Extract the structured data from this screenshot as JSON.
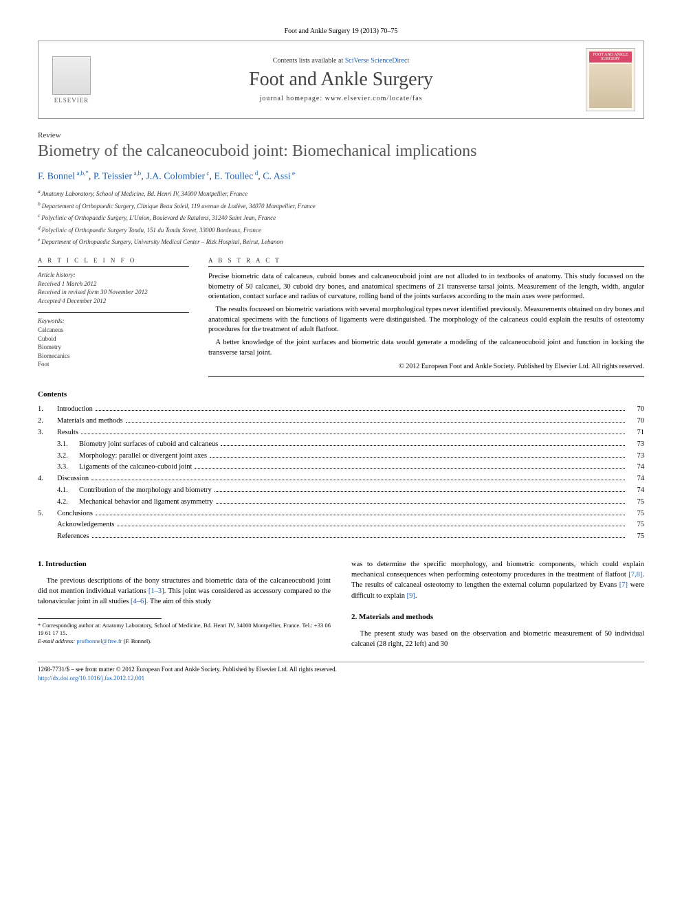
{
  "journal_ref": "Foot and Ankle Surgery 19 (2013) 70–75",
  "header": {
    "publisher": "ELSEVIER",
    "contents_prefix": "Contents lists available at ",
    "contents_link": "SciVerse ScienceDirect",
    "journal_name": "Foot and Ankle Surgery",
    "homepage_prefix": "journal homepage: ",
    "homepage_url": "www.elsevier.com/locate/fas",
    "cover_label": "FOOT AND ANKLE SURGERY"
  },
  "article": {
    "type": "Review",
    "title": "Biometry of the calcaneocuboid joint: Biomechanical implications",
    "authors_html": [
      {
        "name": "F. Bonnel",
        "sup": "a,b,*"
      },
      {
        "name": "P. Teissier",
        "sup": "a,b"
      },
      {
        "name": "J.A. Colombier",
        "sup": "c"
      },
      {
        "name": "E. Toullec",
        "sup": "d"
      },
      {
        "name": "C. Assi",
        "sup": "e"
      }
    ],
    "affiliations": [
      {
        "sup": "a",
        "text": "Anatomy Laboratory, School of Medicine, Bd. Henri IV, 34000 Montpellier, France"
      },
      {
        "sup": "b",
        "text": "Departement of Orthopaedic Surgery, Clinique Beau Soleil, 119 avenue de Lodève, 34070 Montpellier, France"
      },
      {
        "sup": "c",
        "text": "Polyclinic of Orthopaedic Surgery, L'Union, Boulevard de Ratalens, 31240 Saint Jean, France"
      },
      {
        "sup": "d",
        "text": "Polyclinic of Orthopaedic Surgery Tondu, 151 du Tondu Street, 33000 Bordeaux, France"
      },
      {
        "sup": "e",
        "text": "Department of Orthopaedic Surgery, University Medical Center – Rizk Hospital, Beirut, Lebanon"
      }
    ]
  },
  "info": {
    "header": "A R T I C L E   I N F O",
    "history_label": "Article history:",
    "received": "Received 1 March 2012",
    "revised": "Received in revised form 30 November 2012",
    "accepted": "Accepted 4 December 2012",
    "keywords_label": "Keywords:",
    "keywords": [
      "Calcaneus",
      "Cuboid",
      "Biometry",
      "Biomecanics",
      "Foot"
    ]
  },
  "abstract": {
    "header": "A B S T R A C T",
    "p1": "Precise biometric data of calcaneus, cuboid bones and calcaneocuboid joint are not alluded to in textbooks of anatomy. This study focussed on the biometry of 50 calcanei, 30 cuboid dry bones, and anatomical specimens of 21 transverse tarsal joints. Measurement of the length, width, angular orientation, contact surface and radius of curvature, rolling band of the joints surfaces according to the main axes were performed.",
    "p2": "The results focussed on biometric variations with several morphological types never identified previously. Measurements obtained on dry bones and anatomical specimens with the functions of ligaments were distinguished. The morphology of the calcaneus could explain the results of osteotomy procedures for the treatment of adult flatfoot.",
    "p3": "A better knowledge of the joint surfaces and biometric data would generate a modeling of the calcaneocuboid joint and function in locking the transverse tarsal joint.",
    "copyright": "© 2012 European Foot and Ankle Society. Published by Elsevier Ltd. All rights reserved."
  },
  "contents": {
    "heading": "Contents",
    "items": [
      {
        "num": "1.",
        "label": "Introduction",
        "page": "70"
      },
      {
        "num": "2.",
        "label": "Materials and methods",
        "page": "70"
      },
      {
        "num": "3.",
        "label": "Results",
        "page": "71"
      },
      {
        "num": "",
        "sub": "3.1.",
        "label": "Biometry joint surfaces of cuboid and calcaneus",
        "page": "73"
      },
      {
        "num": "",
        "sub": "3.2.",
        "label": "Morphology: parallel or divergent joint axes",
        "page": "73"
      },
      {
        "num": "",
        "sub": "3.3.",
        "label": "Ligaments of the calcaneo-cuboid joint",
        "page": "74"
      },
      {
        "num": "4.",
        "label": "Discussion",
        "page": "74"
      },
      {
        "num": "",
        "sub": "4.1.",
        "label": "Contribution of the morphology and biometry",
        "page": "74"
      },
      {
        "num": "",
        "sub": "4.2.",
        "label": "Mechanical behavior and ligament asymmetry",
        "page": "75"
      },
      {
        "num": "5.",
        "label": "Conclusions",
        "page": "75"
      },
      {
        "num": "",
        "label": "Acknowledgements",
        "page": "75"
      },
      {
        "num": "",
        "label": "References",
        "page": "75"
      }
    ]
  },
  "body": {
    "intro_heading": "1. Introduction",
    "intro_p1a": "The previous descriptions of the bony structures and biometric data of the calcaneocuboid joint did not mention individual variations ",
    "intro_ref1": "[1–3]",
    "intro_p1b": ". This joint was considered as accessory compared to the talonavicular joint in all studies ",
    "intro_ref2": "[4–6]",
    "intro_p1c": ". The aim of this study",
    "col2_p1a": "was to determine the specific morphology, and biometric components, which could explain mechanical consequences when performing osteotomy procedures in the treatment of flatfoot ",
    "col2_ref1": "[7,8]",
    "col2_p1b": ". The results of calcaneal osteotomy to lengthen the external column popularized by Evans ",
    "col2_ref2": "[7]",
    "col2_p1c": " were difficult to explain ",
    "col2_ref3": "[9]",
    "col2_p1d": ".",
    "methods_heading": "2. Materials and methods",
    "methods_p1": "The present study was based on the observation and biometric measurement of 50 individual calcanei (28 right, 22 left) and 30"
  },
  "footnote": {
    "corr_label": "* Corresponding author at: Anatomy Laboratory, School of Medicine, Bd. Henri IV, 34000 Montpellier, France. Tel.: +33 06 19 61 17 15.",
    "email_label": "E-mail address: ",
    "email": "profbonnel@free.fr",
    "email_suffix": " (F. Bonnel)."
  },
  "footer": {
    "line1": "1268-7731/$ – see front matter © 2012 European Foot and Ankle Society. Published by Elsevier Ltd. All rights reserved.",
    "doi": "http://dx.doi.org/10.1016/j.fas.2012.12.001"
  },
  "colors": {
    "link": "#1a5fb4",
    "title_gray": "#575757",
    "cover_pink": "#d94a6a"
  },
  "typography": {
    "body_pt": 10.5,
    "title_pt": 24,
    "journal_name_pt": 28,
    "small_pt": 9
  }
}
